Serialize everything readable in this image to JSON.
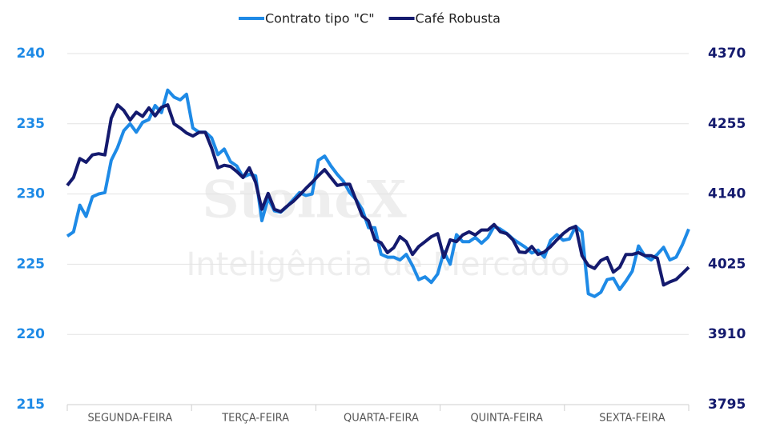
{
  "chart_data": {
    "type": "line",
    "watermark": {
      "brand": "StoneX",
      "tagline": "Inteligência de Mercado"
    },
    "categories": [
      null,
      null,
      null,
      null,
      null,
      null,
      null,
      null,
      null,
      null,
      "SEGUNDA-FEIRA",
      null,
      null,
      null,
      null,
      null,
      null,
      null,
      null,
      null,
      null,
      null,
      null,
      null,
      null,
      null,
      null,
      null,
      null,
      null,
      "TERÇA-FEIRA",
      null,
      null,
      null,
      null,
      null,
      null,
      null,
      null,
      null,
      null,
      null,
      null,
      null,
      null,
      null,
      null,
      null,
      null,
      null,
      "QUARTA-FEIRA",
      null,
      null,
      null,
      null,
      null,
      null,
      null,
      null,
      null,
      null,
      null,
      null,
      null,
      null,
      null,
      null,
      null,
      null,
      null,
      "QUINTA-FEIRA",
      null,
      null,
      null,
      null,
      null,
      null,
      null,
      null,
      null,
      null,
      null,
      null,
      null,
      null,
      null,
      null,
      null,
      null,
      null,
      "SEXTA-FEIRA",
      null,
      null,
      null,
      null,
      null,
      null,
      null,
      null,
      null
    ],
    "series": [
      {
        "name": "Contrato tipo \"C\"",
        "color": "#1e8ae6",
        "axis": "y",
        "values": [
          227.0,
          227.3,
          229.2,
          228.4,
          229.8,
          230.0,
          230.1,
          232.4,
          233.3,
          234.5,
          235.0,
          234.4,
          235.1,
          235.3,
          236.3,
          235.8,
          237.4,
          236.9,
          236.7,
          237.1,
          234.7,
          234.4,
          234.4,
          234.0,
          232.8,
          233.2,
          232.3,
          232.0,
          231.2,
          231.4,
          231.3,
          228.1,
          229.7,
          228.8,
          228.7,
          229.1,
          229.6,
          230.1,
          229.9,
          230.0,
          232.4,
          232.7,
          232.0,
          231.4,
          230.9,
          230.1,
          229.6,
          228.9,
          227.6,
          227.6,
          225.7,
          225.5,
          225.5,
          225.3,
          225.7,
          224.9,
          223.9,
          224.1,
          223.7,
          224.3,
          225.9,
          225.0,
          227.1,
          226.6,
          226.6,
          226.9,
          226.5,
          226.9,
          227.7,
          227.5,
          227.2,
          226.8,
          226.5,
          226.2,
          225.8,
          226.0,
          225.5,
          226.7,
          227.1,
          226.7,
          226.8,
          227.7,
          227.3,
          222.9,
          222.7,
          223.0,
          223.9,
          224.0,
          223.2,
          223.8,
          224.5,
          226.3,
          225.6,
          225.3,
          225.7,
          226.2,
          225.3,
          225.5,
          226.4,
          227.5
        ]
      },
      {
        "name": "Café Robusta",
        "color": "#141a6e",
        "axis": "y2",
        "values": [
          4154,
          4167,
          4198,
          4192,
          4204,
          4206,
          4204,
          4264,
          4286,
          4277,
          4261,
          4274,
          4267,
          4281,
          4268,
          4282,
          4286,
          4255,
          4248,
          4240,
          4235,
          4241,
          4241,
          4215,
          4183,
          4187,
          4185,
          4177,
          4167,
          4183,
          4159,
          4115,
          4141,
          4115,
          4111,
          4120,
          4128,
          4138,
          4149,
          4159,
          4170,
          4180,
          4167,
          4154,
          4156,
          4156,
          4130,
          4104,
          4096,
          4065,
          4060,
          4044,
          4052,
          4070,
          4062,
          4041,
          4054,
          4062,
          4070,
          4075,
          4036,
          4065,
          4062,
          4073,
          4078,
          4073,
          4081,
          4081,
          4090,
          4078,
          4075,
          4065,
          4045,
          4044,
          4054,
          4041,
          4045,
          4054,
          4065,
          4075,
          4083,
          4087,
          4039,
          4023,
          4018,
          4031,
          4036,
          4012,
          4020,
          4041,
          4041,
          4044,
          4039,
          4039,
          4035,
          3991,
          3996,
          4000,
          4010,
          4020
        ]
      }
    ],
    "ylim": [
      215,
      240
    ],
    "yticks": [
      215,
      220,
      225,
      230,
      235,
      240
    ],
    "y2lim": [
      3795,
      4370
    ],
    "y2ticks": [
      3795,
      3910,
      4025,
      4140,
      4255,
      4370
    ],
    "grid": true,
    "legend": "top"
  }
}
